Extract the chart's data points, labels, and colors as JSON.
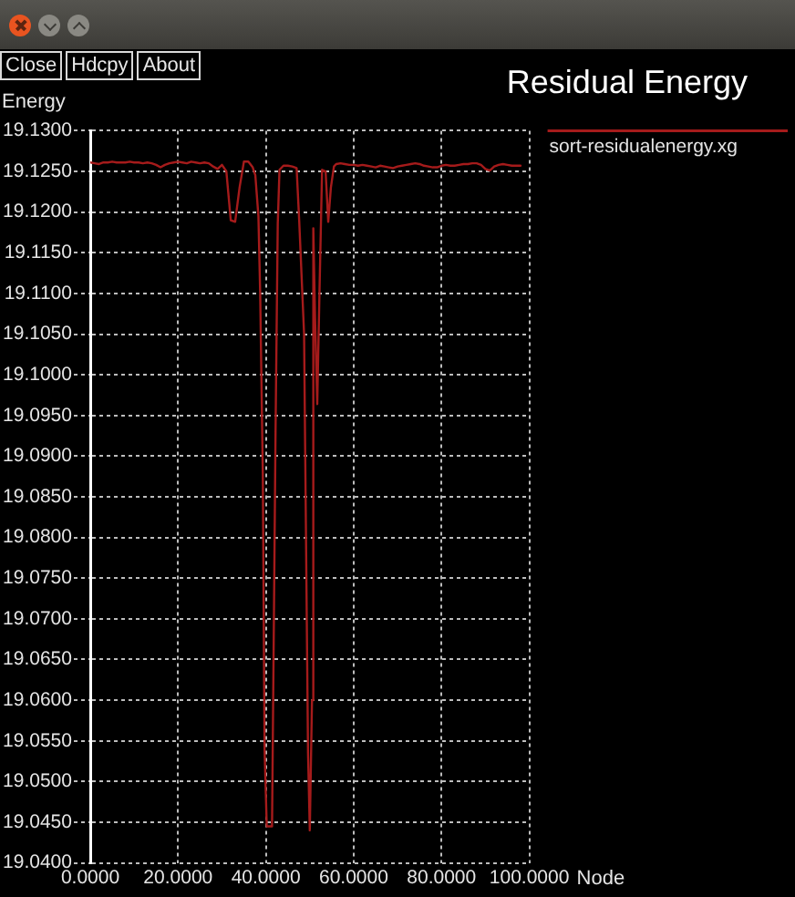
{
  "chart_data": {
    "type": "line",
    "title": "Residual Energy",
    "xlabel": "Node",
    "ylabel": "Energy",
    "annotations": [
      "Close",
      "Hdcpy",
      "About"
    ],
    "x": [
      0,
      1,
      2,
      3,
      4,
      5,
      6,
      7,
      8,
      9,
      10,
      11,
      12,
      13,
      14,
      15,
      16,
      17,
      18,
      19,
      20,
      21,
      22,
      23,
      24,
      25,
      26,
      27,
      28,
      29,
      30,
      31,
      32,
      33,
      34,
      35,
      36,
      37,
      37.6,
      38.3,
      38.7,
      39.3,
      39.7,
      40.2,
      41.4,
      41.8,
      42.2,
      42.7,
      43.1,
      44,
      45,
      46,
      47,
      47.6,
      48.7,
      49.6,
      50,
      50.5,
      50.8,
      51.2,
      51.7,
      52.2,
      52.8,
      53.6,
      54.2,
      54.8,
      55.5,
      56,
      57,
      58,
      59,
      60,
      61,
      62,
      63,
      64,
      65,
      66,
      67,
      68,
      69,
      70,
      71,
      72,
      73,
      74,
      75,
      76,
      77,
      78,
      79,
      80,
      81,
      82,
      83,
      84,
      85,
      86,
      87,
      88,
      89,
      90,
      91,
      92,
      93,
      94,
      95,
      96,
      97,
      98
    ],
    "series": [
      {
        "name": "sort-residualenergy.xg",
        "color": "#a51b1b",
        "values": [
          19.1261,
          19.126,
          19.1259,
          19.1261,
          19.1261,
          19.1262,
          19.1261,
          19.1261,
          19.1261,
          19.1262,
          19.1261,
          19.1261,
          19.126,
          19.1261,
          19.126,
          19.1258,
          19.1255,
          19.1258,
          19.126,
          19.1261,
          19.1262,
          19.1261,
          19.126,
          19.1262,
          19.1261,
          19.126,
          19.1261,
          19.126,
          19.1256,
          19.1253,
          19.1258,
          19.125,
          19.119,
          19.1188,
          19.123,
          19.1262,
          19.1262,
          19.1255,
          19.1245,
          19.1195,
          19.11,
          19.0878,
          19.054,
          19.0445,
          19.0445,
          19.0684,
          19.093,
          19.1185,
          19.1252,
          19.1257,
          19.1257,
          19.1256,
          19.1254,
          19.1188,
          19.105,
          19.0535,
          19.044,
          19.06,
          19.118,
          19.107,
          19.0964,
          19.11,
          19.1252,
          19.125,
          19.1188,
          19.123,
          19.1256,
          19.1259,
          19.126,
          19.1259,
          19.1258,
          19.1258,
          19.1257,
          19.1258,
          19.1257,
          19.1256,
          19.1255,
          19.1257,
          19.1256,
          19.1255,
          19.1254,
          19.1256,
          19.1257,
          19.1258,
          19.1259,
          19.126,
          19.1259,
          19.1257,
          19.1256,
          19.1255,
          19.1255,
          19.1257,
          19.1258,
          19.1257,
          19.1257,
          19.1258,
          19.1259,
          19.1259,
          19.126,
          19.126,
          19.1258,
          19.1253,
          19.1251,
          19.1256,
          19.1258,
          19.1259,
          19.1258,
          19.1257,
          19.1257,
          19.1257
        ]
      }
    ],
    "xlim": [
      0,
      100
    ],
    "xticks": [
      {
        "value": 0,
        "label": "0.0000"
      },
      {
        "value": 20,
        "label": "20.0000"
      },
      {
        "value": 40,
        "label": "40.0000"
      },
      {
        "value": 60,
        "label": "60.0000"
      },
      {
        "value": 80,
        "label": "80.0000"
      },
      {
        "value": 100,
        "label": "100.0000"
      }
    ],
    "ylim": [
      19.04,
      19.13
    ],
    "yticks": [
      {
        "value": 19.04,
        "label": "19.0400"
      },
      {
        "value": 19.045,
        "label": "19.0450"
      },
      {
        "value": 19.05,
        "label": "19.0500"
      },
      {
        "value": 19.055,
        "label": "19.0550"
      },
      {
        "value": 19.06,
        "label": "19.0600"
      },
      {
        "value": 19.065,
        "label": "19.0650"
      },
      {
        "value": 19.07,
        "label": "19.0700"
      },
      {
        "value": 19.075,
        "label": "19.0750"
      },
      {
        "value": 19.08,
        "label": "19.0800"
      },
      {
        "value": 19.085,
        "label": "19.0850"
      },
      {
        "value": 19.09,
        "label": "19.0900"
      },
      {
        "value": 19.095,
        "label": "19.0950"
      },
      {
        "value": 19.1,
        "label": "19.1000"
      },
      {
        "value": 19.105,
        "label": "19.1050"
      },
      {
        "value": 19.11,
        "label": "19.1100"
      },
      {
        "value": 19.115,
        "label": "19.1150"
      },
      {
        "value": 19.12,
        "label": "19.1200"
      },
      {
        "value": 19.125,
        "label": "19.1250"
      },
      {
        "value": 19.13,
        "label": "19.1300"
      }
    ],
    "grid": true,
    "legend": "top right"
  }
}
